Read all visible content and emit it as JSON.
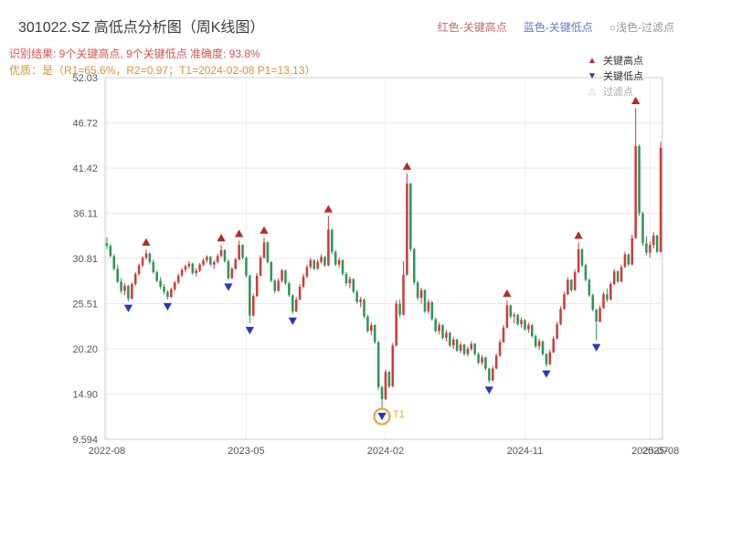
{
  "header": {
    "title": "301022.SZ 高低点分析图（周K线图）",
    "legend_top": [
      {
        "label": "红色-关键高点",
        "color": "#c06a6a"
      },
      {
        "label": "蓝色-关键低点",
        "color": "#6a78c0"
      },
      {
        "label": "○浅色-过滤点",
        "color": "#999999"
      }
    ],
    "result_line": "识别结果: 9个关键高点, 9个关键低点  准确度: 93.8%",
    "result_color": "#d9534f",
    "quality_line": "优质：是（R1=65.6%，R2=0.97；T1=2024-02-08 P1=13.13）",
    "quality_color": "#d99433"
  },
  "chart_legend": [
    {
      "label": "关键高点",
      "icon": "up-triangle",
      "color": "#c42525"
    },
    {
      "label": "关键低点",
      "icon": "down-triangle",
      "color": "#2438c8"
    },
    {
      "label": "过滤点",
      "icon": "hollow-up-triangle",
      "color": "#bbbbbb"
    }
  ],
  "chart_data": {
    "type": "candlestick",
    "title": "301022.SZ 高低点分析图（周K线图）",
    "ylim": [
      9.594,
      52.03
    ],
    "y_min": 9.594,
    "y_max": 52.03,
    "grid": true,
    "y_ticks": [
      52.03,
      46.72,
      41.42,
      36.11,
      30.81,
      25.51,
      20.2,
      14.9,
      9.594
    ],
    "x_ticks": [
      {
        "index": 0,
        "label": "2022-08"
      },
      {
        "index": 39,
        "label": "2023-05"
      },
      {
        "index": 78,
        "label": "2024-02"
      },
      {
        "index": 117,
        "label": "2024-11"
      },
      {
        "index": 152,
        "label": "2025-07"
      },
      {
        "index": 155,
        "label": "2025-08"
      }
    ],
    "up_color": "#cf3b3b",
    "down_color": "#2e9658",
    "marker_high_color": "#c42525",
    "marker_low_color": "#2438c8",
    "candles": [
      [
        32.6,
        33.3,
        31.9,
        32.3
      ],
      [
        32.3,
        32.5,
        30.9,
        31.1
      ],
      [
        31.1,
        31.3,
        29.4,
        29.6
      ],
      [
        29.6,
        30.1,
        27.9,
        28.1
      ],
      [
        28.1,
        28.5,
        26.7,
        27.0
      ],
      [
        27.0,
        27.9,
        26.5,
        27.6
      ],
      [
        27.6,
        27.7,
        25.8,
        26.1
      ],
      [
        26.1,
        28.0,
        26.0,
        27.8
      ],
      [
        27.8,
        29.2,
        27.6,
        29.0
      ],
      [
        29.0,
        30.2,
        28.8,
        30.0
      ],
      [
        30.0,
        31.1,
        29.8,
        30.9
      ],
      [
        30.9,
        31.9,
        30.7,
        31.4
      ],
      [
        31.4,
        31.5,
        30.1,
        30.4
      ],
      [
        30.4,
        30.7,
        29.0,
        29.2
      ],
      [
        29.2,
        29.4,
        28.0,
        28.2
      ],
      [
        28.2,
        28.6,
        27.2,
        27.5
      ],
      [
        27.5,
        27.8,
        26.6,
        26.9
      ],
      [
        26.9,
        27.1,
        26.0,
        26.3
      ],
      [
        26.3,
        27.4,
        26.2,
        27.2
      ],
      [
        27.2,
        28.2,
        27.0,
        28.0
      ],
      [
        28.0,
        29.0,
        27.8,
        28.8
      ],
      [
        28.8,
        29.7,
        28.6,
        29.5
      ],
      [
        29.5,
        30.1,
        29.2,
        29.9
      ],
      [
        29.9,
        30.5,
        29.6,
        30.2
      ],
      [
        30.2,
        30.3,
        28.9,
        29.1
      ],
      [
        29.1,
        29.7,
        28.7,
        29.4
      ],
      [
        29.4,
        30.3,
        29.2,
        30.1
      ],
      [
        30.1,
        30.8,
        29.9,
        30.6
      ],
      [
        30.6,
        31.2,
        30.3,
        31.0
      ],
      [
        31.0,
        31.1,
        29.9,
        30.1
      ],
      [
        30.1,
        30.6,
        29.6,
        30.4
      ],
      [
        30.4,
        31.4,
        30.2,
        31.1
      ],
      [
        31.1,
        32.4,
        30.9,
        31.8
      ],
      [
        31.8,
        31.9,
        30.3,
        30.5
      ],
      [
        30.5,
        30.7,
        28.3,
        28.5
      ],
      [
        28.5,
        29.8,
        28.4,
        29.6
      ],
      [
        29.6,
        30.9,
        29.5,
        30.7
      ],
      [
        30.7,
        32.9,
        30.6,
        32.4
      ],
      [
        32.4,
        32.5,
        30.7,
        30.9
      ],
      [
        30.9,
        31.0,
        28.6,
        28.8
      ],
      [
        28.8,
        28.9,
        23.2,
        24.1
      ],
      [
        24.1,
        26.7,
        24.0,
        26.4
      ],
      [
        26.4,
        29.1,
        26.3,
        28.8
      ],
      [
        28.8,
        31.2,
        28.7,
        30.9
      ],
      [
        30.9,
        33.3,
        30.8,
        32.7
      ],
      [
        32.7,
        32.8,
        30.2,
        30.4
      ],
      [
        30.4,
        30.5,
        28.0,
        28.2
      ],
      [
        28.2,
        28.4,
        26.7,
        27.0
      ],
      [
        27.0,
        28.5,
        26.9,
        28.2
      ],
      [
        28.2,
        29.6,
        28.0,
        29.4
      ],
      [
        29.4,
        29.5,
        27.7,
        27.9
      ],
      [
        27.9,
        28.1,
        26.3,
        26.5
      ],
      [
        26.5,
        26.6,
        24.3,
        24.6
      ],
      [
        24.6,
        26.3,
        24.5,
        26.0
      ],
      [
        26.0,
        27.8,
        25.9,
        27.5
      ],
      [
        27.5,
        29.0,
        27.3,
        28.7
      ],
      [
        28.7,
        30.1,
        28.5,
        29.8
      ],
      [
        29.8,
        30.9,
        29.6,
        30.6
      ],
      [
        30.6,
        30.7,
        29.4,
        29.6
      ],
      [
        29.6,
        30.7,
        29.5,
        30.4
      ],
      [
        30.4,
        31.3,
        30.2,
        31.0
      ],
      [
        31.0,
        31.1,
        29.8,
        30.0
      ],
      [
        30.0,
        35.8,
        29.9,
        34.2
      ],
      [
        34.2,
        34.3,
        31.3,
        31.6
      ],
      [
        31.6,
        31.8,
        29.9,
        30.1
      ],
      [
        30.1,
        30.9,
        29.7,
        30.6
      ],
      [
        30.6,
        30.7,
        28.8,
        29.0
      ],
      [
        29.0,
        29.2,
        27.6,
        27.9
      ],
      [
        27.9,
        28.7,
        27.3,
        28.4
      ],
      [
        28.4,
        28.5,
        26.7,
        26.9
      ],
      [
        26.9,
        27.1,
        25.5,
        25.7
      ],
      [
        25.7,
        26.3,
        25.1,
        26.0
      ],
      [
        26.0,
        26.1,
        23.8,
        24.0
      ],
      [
        24.0,
        24.2,
        22.1,
        22.3
      ],
      [
        22.3,
        23.3,
        21.8,
        23.0
      ],
      [
        23.0,
        23.1,
        20.8,
        21.0
      ],
      [
        21.0,
        21.2,
        15.4,
        15.7
      ],
      [
        15.7,
        15.9,
        13.13,
        14.3
      ],
      [
        14.3,
        17.8,
        14.2,
        17.5
      ],
      [
        17.5,
        17.6,
        15.6,
        15.8
      ],
      [
        15.8,
        20.9,
        15.7,
        20.6
      ],
      [
        20.6,
        25.9,
        20.5,
        25.5
      ],
      [
        25.5,
        26.0,
        23.9,
        24.2
      ],
      [
        24.2,
        30.5,
        24.1,
        28.9
      ],
      [
        28.9,
        40.8,
        28.8,
        39.6
      ],
      [
        39.6,
        39.7,
        31.6,
        31.9
      ],
      [
        31.9,
        32.1,
        27.7,
        28.0
      ],
      [
        28.0,
        28.2,
        25.9,
        26.2
      ],
      [
        26.2,
        27.4,
        25.5,
        27.1
      ],
      [
        27.1,
        27.2,
        24.4,
        24.6
      ],
      [
        24.6,
        26.0,
        24.3,
        25.7
      ],
      [
        25.7,
        25.8,
        23.5,
        23.7
      ],
      [
        23.7,
        23.9,
        22.1,
        22.3
      ],
      [
        22.3,
        23.3,
        21.9,
        23.0
      ],
      [
        23.0,
        23.1,
        21.3,
        21.5
      ],
      [
        21.5,
        22.4,
        21.1,
        22.1
      ],
      [
        22.1,
        22.2,
        20.4,
        20.6
      ],
      [
        20.6,
        21.6,
        20.2,
        21.3
      ],
      [
        21.3,
        21.4,
        19.8,
        20.0
      ],
      [
        20.0,
        21.0,
        19.7,
        20.7
      ],
      [
        20.7,
        20.8,
        19.4,
        19.6
      ],
      [
        19.6,
        20.5,
        19.3,
        20.2
      ],
      [
        20.2,
        21.1,
        20.0,
        20.8
      ],
      [
        20.8,
        20.9,
        19.4,
        19.6
      ],
      [
        19.6,
        19.8,
        18.4,
        18.6
      ],
      [
        18.6,
        19.5,
        18.3,
        19.2
      ],
      [
        19.2,
        19.3,
        17.7,
        17.9
      ],
      [
        17.9,
        18.0,
        16.2,
        16.5
      ],
      [
        16.5,
        18.2,
        16.4,
        17.9
      ],
      [
        17.9,
        19.7,
        17.8,
        19.4
      ],
      [
        19.4,
        21.3,
        19.3,
        21.0
      ],
      [
        21.0,
        23.0,
        20.9,
        22.7
      ],
      [
        22.7,
        25.9,
        22.6,
        25.3
      ],
      [
        25.3,
        25.4,
        23.8,
        24.0
      ],
      [
        24.0,
        24.5,
        23.2,
        24.2
      ],
      [
        24.2,
        24.3,
        22.9,
        23.1
      ],
      [
        23.1,
        23.9,
        22.7,
        23.6
      ],
      [
        23.6,
        23.7,
        22.3,
        22.5
      ],
      [
        22.5,
        23.3,
        22.1,
        23.0
      ],
      [
        23.0,
        23.1,
        21.5,
        21.7
      ],
      [
        21.7,
        21.9,
        20.3,
        20.5
      ],
      [
        20.5,
        21.4,
        20.1,
        21.1
      ],
      [
        21.1,
        21.2,
        19.4,
        19.6
      ],
      [
        19.6,
        19.7,
        18.1,
        18.4
      ],
      [
        18.4,
        20.1,
        18.3,
        19.8
      ],
      [
        19.8,
        21.7,
        19.7,
        21.4
      ],
      [
        21.4,
        23.4,
        21.3,
        23.1
      ],
      [
        23.1,
        25.2,
        23.0,
        24.9
      ],
      [
        24.9,
        26.9,
        24.8,
        26.6
      ],
      [
        26.6,
        28.6,
        26.5,
        28.3
      ],
      [
        28.3,
        28.4,
        26.9,
        27.1
      ],
      [
        27.1,
        29.5,
        27.0,
        29.2
      ],
      [
        29.2,
        32.7,
        29.1,
        31.9
      ],
      [
        31.9,
        32.0,
        29.8,
        30.0
      ],
      [
        30.0,
        30.2,
        28.1,
        28.3
      ],
      [
        28.3,
        28.5,
        26.3,
        26.5
      ],
      [
        26.5,
        26.7,
        24.6,
        24.8
      ],
      [
        24.8,
        24.9,
        21.2,
        23.4
      ],
      [
        23.4,
        25.3,
        23.3,
        25.0
      ],
      [
        25.0,
        26.9,
        24.9,
        26.6
      ],
      [
        26.6,
        27.3,
        25.7,
        26.0
      ],
      [
        26.0,
        28.1,
        25.9,
        27.8
      ],
      [
        27.8,
        29.6,
        27.7,
        29.3
      ],
      [
        29.3,
        29.4,
        27.9,
        28.1
      ],
      [
        28.1,
        30.1,
        28.0,
        29.8
      ],
      [
        29.8,
        31.6,
        29.7,
        31.3
      ],
      [
        31.3,
        31.4,
        29.9,
        30.1
      ],
      [
        30.1,
        33.6,
        30.0,
        33.2
      ],
      [
        33.2,
        48.5,
        33.1,
        44.0
      ],
      [
        44.0,
        44.2,
        35.8,
        36.1
      ],
      [
        36.1,
        36.3,
        32.3,
        32.6
      ],
      [
        32.6,
        33.4,
        31.2,
        31.5
      ],
      [
        31.5,
        32.8,
        30.9,
        32.4
      ],
      [
        32.4,
        33.9,
        32.0,
        33.5
      ],
      [
        33.5,
        33.6,
        31.4,
        31.6
      ],
      [
        31.6,
        44.5,
        31.5,
        43.8
      ]
    ],
    "key_highs": [
      11,
      32,
      37,
      44,
      62,
      84,
      112,
      132,
      148
    ],
    "key_lows": [
      6,
      17,
      34,
      40,
      52,
      77,
      107,
      123,
      137
    ],
    "t1": {
      "index": 77,
      "label": "T1",
      "price": 13.13,
      "circle_color": "#f0a13c"
    }
  }
}
